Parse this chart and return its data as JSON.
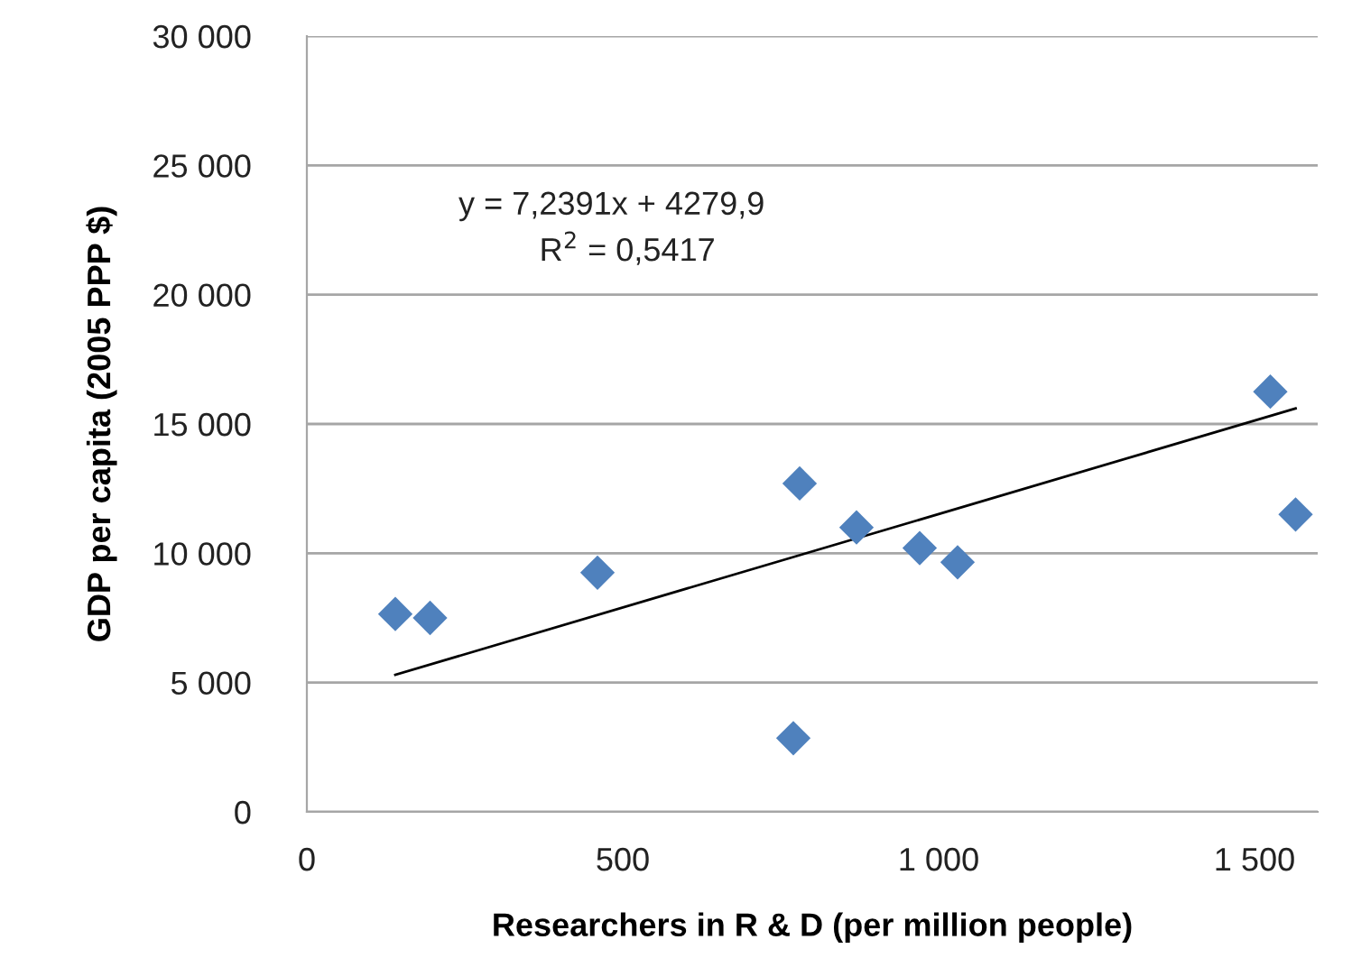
{
  "chart_data": {
    "type": "scatter",
    "xlabel": "Researchers in R & D (per million people)",
    "ylabel": "GDP per capita (2005 PPP $)",
    "annotations": [
      "y = 7,2391x + 4279,9",
      "R$^{2}$ = 0,5417"
    ],
    "series": [
      {
        "color": "#4f81bd",
        "marker": "diamond",
        "x": [
          140,
          195,
          460,
          770,
          780,
          870,
          970,
          1030,
          1525,
          1565
        ],
        "values": [
          7650,
          7500,
          9250,
          2850,
          12700,
          11000,
          10200,
          9650,
          16250,
          11500
        ]
      },
      {
        "type": "line",
        "color": "#000000",
        "marker": "none",
        "x": [
          140,
          1565
        ],
        "values": [
          5300,
          15600
        ]
      }
    ],
    "xlim": [
      0,
      1600
    ],
    "xticks": [
      0,
      {
        "value": 500,
        "label": "500"
      },
      {
        "value": 1000,
        "label": "1 000"
      },
      {
        "value": 1500,
        "label": "1 500"
      }
    ],
    "ylim": [
      0,
      30000
    ],
    "yticks": [
      0,
      {
        "value": 5000,
        "label": "5 000"
      },
      {
        "value": 10000,
        "label": "10 000"
      },
      {
        "value": 15000,
        "label": "15 000"
      },
      {
        "value": 20000,
        "label": "20 000"
      },
      {
        "value": 25000,
        "label": "25 000"
      },
      {
        "value": 30000,
        "label": "30 000"
      }
    ],
    "grid": "y",
    "legend": false
  }
}
